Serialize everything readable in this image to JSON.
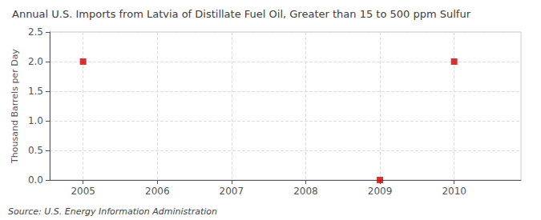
{
  "chart_data": {
    "type": "scatter",
    "title": "Annual U.S. Imports from Latvia of Distillate Fuel Oil, Greater than 15 to 500 ppm Sulfur",
    "ylabel": "Thousand Barrels per Day",
    "source": "Source: U.S. Energy Information Administration",
    "x": [
      2005,
      2009,
      2010
    ],
    "values": [
      2.0,
      0.0,
      2.0
    ],
    "color": "#CC0000",
    "marker": "square",
    "xlim": [
      2004.55,
      2010.9
    ],
    "ylim": [
      0.0,
      2.5
    ],
    "xticks": [
      2005,
      2006,
      2007,
      2008,
      2009,
      2010
    ],
    "yticks": [
      {
        "value": 0,
        "label": "0.0"
      },
      0.5,
      {
        "value": 1,
        "label": "1.0"
      },
      1.5,
      {
        "value": 2,
        "label": "2.0"
      },
      2.5
    ],
    "grid": true
  }
}
